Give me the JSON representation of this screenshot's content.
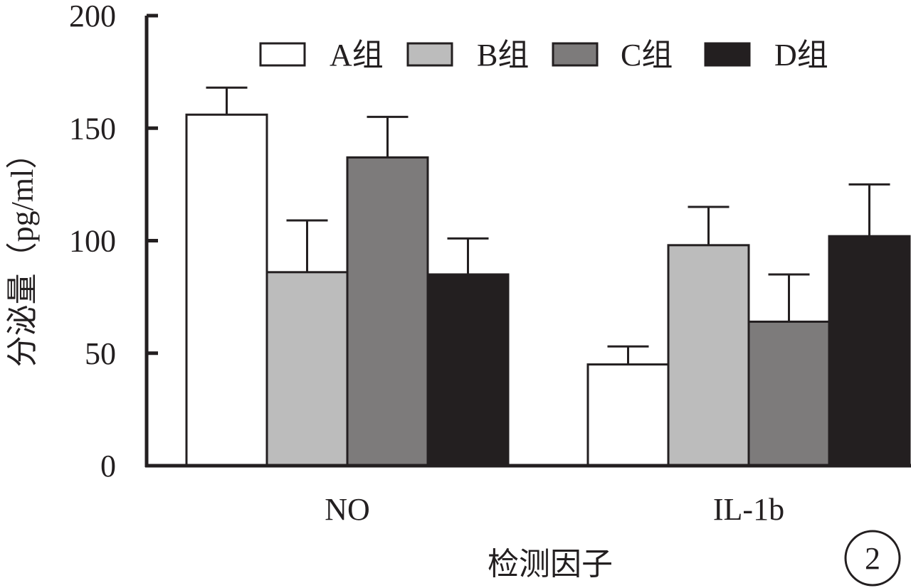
{
  "chart_data": {
    "type": "bar",
    "title": "",
    "xlabel": "检测因子",
    "ylabel": "分泌量（pg/ml）",
    "ylim": [
      0,
      200
    ],
    "yticks": [
      "0",
      "50",
      "100",
      "150",
      "200"
    ],
    "categories": [
      "NO",
      "IL-1b"
    ],
    "series": [
      {
        "name": "A组",
        "values": [
          156,
          45
        ],
        "errors": [
          12,
          8
        ]
      },
      {
        "name": "B组",
        "values": [
          86,
          98
        ],
        "errors": [
          23,
          17
        ]
      },
      {
        "name": "C组",
        "values": [
          137,
          64
        ],
        "errors": [
          18,
          21
        ]
      },
      {
        "name": "D组",
        "values": [
          85,
          102
        ],
        "errors": [
          16,
          23
        ]
      }
    ],
    "legend_position": "top-right",
    "grid": false,
    "panel_label": "2"
  },
  "colors": {
    "axis": "#231f20",
    "series": [
      "#ffffff",
      "#bcbcbc",
      "#7d7b7b",
      "#231f20"
    ]
  }
}
